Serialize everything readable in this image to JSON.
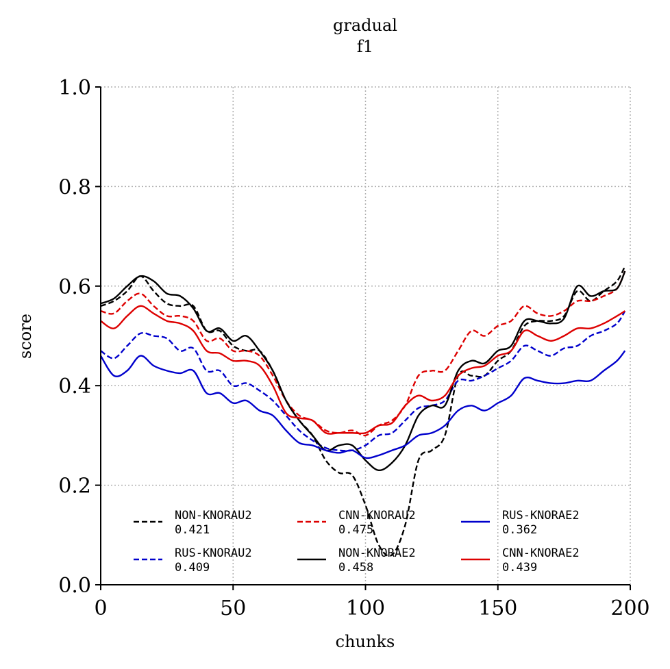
{
  "chart_data": {
    "type": "line",
    "title": "gradual",
    "subtitle": "f1",
    "xlabel": "chunks",
    "ylabel": "score",
    "xlim": [
      0,
      200
    ],
    "ylim": [
      0,
      1
    ],
    "xticks": [
      0,
      50,
      100,
      150,
      200
    ],
    "xtick_labels": [
      "0",
      "50",
      "100",
      "150",
      "200"
    ],
    "yticks": [
      0.0,
      0.2,
      0.4,
      0.6,
      0.8,
      1.0
    ],
    "ytick_labels": [
      "0.0",
      "0.2",
      "0.4",
      "0.6",
      "0.8",
      "1.0"
    ],
    "grid": true,
    "legend_position": "lower-center",
    "legend_columns": 3,
    "series": [
      {
        "name": "NON-KNORAU2",
        "score": "0.421",
        "color": "#000000",
        "dash": "dashed",
        "x": [
          0,
          5,
          10,
          15,
          20,
          25,
          30,
          35,
          40,
          45,
          50,
          55,
          60,
          65,
          70,
          75,
          80,
          85,
          90,
          95,
          100,
          105,
          110,
          115,
          120,
          125,
          130,
          135,
          140,
          145,
          150,
          155,
          160,
          165,
          170,
          175,
          180,
          185,
          190,
          195,
          198
        ],
        "y": [
          0.56,
          0.57,
          0.59,
          0.62,
          0.59,
          0.565,
          0.56,
          0.56,
          0.51,
          0.51,
          0.48,
          0.47,
          0.47,
          0.43,
          0.37,
          0.33,
          0.3,
          0.25,
          0.225,
          0.22,
          0.16,
          0.08,
          0.06,
          0.12,
          0.25,
          0.27,
          0.3,
          0.42,
          0.42,
          0.42,
          0.45,
          0.47,
          0.52,
          0.53,
          0.53,
          0.54,
          0.59,
          0.57,
          0.59,
          0.61,
          0.64
        ]
      },
      {
        "name": "RUS-KNORAU2",
        "score": "0.409",
        "color": "#0000cc",
        "dash": "dashed",
        "x": [
          0,
          5,
          10,
          15,
          20,
          25,
          30,
          35,
          40,
          45,
          50,
          55,
          60,
          65,
          70,
          75,
          80,
          85,
          90,
          95,
          100,
          105,
          110,
          115,
          120,
          125,
          130,
          135,
          140,
          145,
          150,
          155,
          160,
          165,
          170,
          175,
          180,
          185,
          190,
          195,
          198
        ],
        "y": [
          0.47,
          0.455,
          0.48,
          0.505,
          0.5,
          0.495,
          0.47,
          0.475,
          0.43,
          0.43,
          0.4,
          0.405,
          0.39,
          0.37,
          0.34,
          0.31,
          0.29,
          0.275,
          0.27,
          0.27,
          0.28,
          0.3,
          0.305,
          0.33,
          0.355,
          0.36,
          0.37,
          0.41,
          0.41,
          0.42,
          0.435,
          0.45,
          0.48,
          0.47,
          0.46,
          0.475,
          0.48,
          0.5,
          0.51,
          0.525,
          0.55
        ]
      },
      {
        "name": "CNN-KNORAU2",
        "score": "0.475",
        "color": "#dd0000",
        "dash": "dashed",
        "x": [
          0,
          5,
          10,
          15,
          20,
          25,
          30,
          35,
          40,
          45,
          50,
          55,
          60,
          65,
          70,
          75,
          80,
          85,
          90,
          95,
          100,
          105,
          110,
          115,
          120,
          125,
          130,
          135,
          140,
          145,
          150,
          155,
          160,
          165,
          170,
          175,
          180,
          185,
          190,
          195,
          198
        ],
        "y": [
          0.55,
          0.545,
          0.57,
          0.585,
          0.56,
          0.54,
          0.54,
          0.53,
          0.49,
          0.495,
          0.47,
          0.47,
          0.46,
          0.42,
          0.37,
          0.34,
          0.33,
          0.31,
          0.305,
          0.31,
          0.3,
          0.32,
          0.33,
          0.36,
          0.42,
          0.43,
          0.43,
          0.47,
          0.51,
          0.5,
          0.52,
          0.53,
          0.56,
          0.545,
          0.54,
          0.55,
          0.57,
          0.57,
          0.58,
          0.595,
          0.63
        ]
      },
      {
        "name": "NON-KNORAE2",
        "score": "0.458",
        "color": "#000000",
        "dash": "solid",
        "x": [
          0,
          5,
          10,
          15,
          20,
          25,
          30,
          35,
          40,
          45,
          50,
          55,
          60,
          65,
          70,
          75,
          80,
          85,
          90,
          95,
          100,
          105,
          110,
          115,
          120,
          125,
          130,
          135,
          140,
          145,
          150,
          155,
          160,
          165,
          170,
          175,
          180,
          185,
          190,
          195,
          198
        ],
        "y": [
          0.565,
          0.575,
          0.6,
          0.62,
          0.61,
          0.585,
          0.58,
          0.555,
          0.51,
          0.515,
          0.49,
          0.5,
          0.47,
          0.43,
          0.37,
          0.33,
          0.3,
          0.27,
          0.28,
          0.28,
          0.25,
          0.23,
          0.245,
          0.28,
          0.34,
          0.36,
          0.36,
          0.43,
          0.45,
          0.445,
          0.47,
          0.48,
          0.53,
          0.53,
          0.525,
          0.535,
          0.6,
          0.58,
          0.59,
          0.595,
          0.63
        ]
      },
      {
        "name": "RUS-KNORAE2",
        "score": "0.362",
        "color": "#0000cc",
        "dash": "solid",
        "x": [
          0,
          5,
          10,
          15,
          20,
          25,
          30,
          35,
          40,
          45,
          50,
          55,
          60,
          65,
          70,
          75,
          80,
          85,
          90,
          95,
          100,
          105,
          110,
          115,
          120,
          125,
          130,
          135,
          140,
          145,
          150,
          155,
          160,
          165,
          170,
          175,
          180,
          185,
          190,
          195,
          198
        ],
        "y": [
          0.46,
          0.42,
          0.43,
          0.46,
          0.44,
          0.43,
          0.425,
          0.43,
          0.385,
          0.385,
          0.365,
          0.37,
          0.35,
          0.34,
          0.31,
          0.285,
          0.28,
          0.27,
          0.265,
          0.27,
          0.255,
          0.26,
          0.27,
          0.28,
          0.3,
          0.305,
          0.32,
          0.35,
          0.36,
          0.35,
          0.365,
          0.38,
          0.415,
          0.41,
          0.405,
          0.405,
          0.41,
          0.41,
          0.43,
          0.45,
          0.47
        ]
      },
      {
        "name": "CNN-KNORAE2",
        "score": "0.439",
        "color": "#dd0000",
        "dash": "solid",
        "x": [
          0,
          5,
          10,
          15,
          20,
          25,
          30,
          35,
          40,
          45,
          50,
          55,
          60,
          65,
          70,
          75,
          80,
          85,
          90,
          95,
          100,
          105,
          110,
          115,
          120,
          125,
          130,
          135,
          140,
          145,
          150,
          155,
          160,
          165,
          170,
          175,
          180,
          185,
          190,
          195,
          198
        ],
        "y": [
          0.53,
          0.515,
          0.54,
          0.56,
          0.545,
          0.53,
          0.525,
          0.51,
          0.47,
          0.465,
          0.45,
          0.45,
          0.44,
          0.4,
          0.345,
          0.335,
          0.33,
          0.305,
          0.305,
          0.305,
          0.305,
          0.32,
          0.325,
          0.36,
          0.38,
          0.37,
          0.38,
          0.42,
          0.435,
          0.44,
          0.46,
          0.47,
          0.51,
          0.5,
          0.49,
          0.5,
          0.515,
          0.515,
          0.525,
          0.54,
          0.55
        ]
      }
    ]
  }
}
